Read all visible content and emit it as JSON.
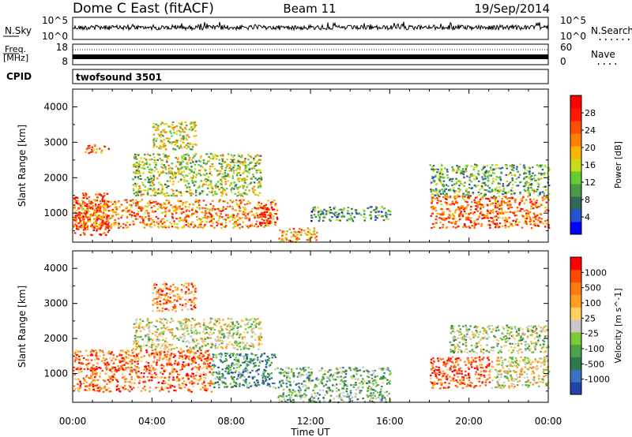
{
  "header": {
    "station": "Dome C East (fitACF)",
    "beam": "Beam 11",
    "date": "19/Sep/2014"
  },
  "param_strips": {
    "sky": {
      "label": "N.Sky",
      "left_ticks": [
        "10^5",
        "10^0"
      ],
      "right_ticks": [
        "10^5",
        "10^0"
      ],
      "right_label": "N.Search"
    },
    "freq": {
      "label_line1": "Freq.",
      "label_line2": "[MHz]",
      "left_ticks": [
        "18",
        "8"
      ],
      "right_ticks": [
        "60",
        "0"
      ],
      "right_label": "Nave"
    },
    "cpid": {
      "label": "CPID",
      "program": "twofsound 3501"
    }
  },
  "chart_data": [
    {
      "type": "heatmap",
      "title": "Power",
      "xlabel": "Time UT",
      "ylabel": "Slant Range [km]",
      "x_ticks": [
        "00:00",
        "04:00",
        "08:00",
        "12:00",
        "16:00",
        "20:00",
        "00:00"
      ],
      "y_ticks": [
        1000,
        2000,
        3000,
        4000
      ],
      "xlim_hours": [
        0,
        24
      ],
      "ylim_km": [
        180,
        4500
      ],
      "colorbar": {
        "label": "Power [dB]",
        "ticks": [
          "4",
          "8",
          "12",
          "16",
          "20",
          "24",
          "28"
        ],
        "colors": [
          "#0000ff",
          "#2255cc",
          "#2f6a57",
          "#4a9a4a",
          "#66cc33",
          "#c8dc1e",
          "#ffb400",
          "#ff8000",
          "#ff5000",
          "#ff1a00",
          "#ff0000"
        ]
      },
      "regions": [
        {
          "t": [
            0.0,
            1.8
          ],
          "r": [
            400,
            1600
          ],
          "v": 0.85
        },
        {
          "t": [
            0.0,
            10.2
          ],
          "r": [
            600,
            1400
          ],
          "v": 0.7
        },
        {
          "t": [
            0.6,
            1.8
          ],
          "r": [
            2700,
            2950
          ],
          "v": 0.7
        },
        {
          "t": [
            3.0,
            9.5
          ],
          "r": [
            1500,
            2700
          ],
          "v": 0.45
        },
        {
          "t": [
            4.0,
            6.2
          ],
          "r": [
            2800,
            3600
          ],
          "v": 0.5
        },
        {
          "t": [
            9.4,
            10.3
          ],
          "r": [
            700,
            1200
          ],
          "v": 0.9
        },
        {
          "t": [
            10.3,
            12.3
          ],
          "r": [
            200,
            600
          ],
          "v": 0.65
        },
        {
          "t": [
            12.0,
            16.0
          ],
          "r": [
            800,
            1200
          ],
          "v": 0.3
        },
        {
          "t": [
            18.0,
            24.0
          ],
          "r": [
            600,
            1500
          ],
          "v": 0.75
        },
        {
          "t": [
            18.0,
            24.0
          ],
          "r": [
            1500,
            2400
          ],
          "v": 0.35
        }
      ]
    },
    {
      "type": "heatmap",
      "title": "Velocity",
      "xlabel": "Time UT",
      "ylabel": "Slant Range [km]",
      "x_ticks": [
        "00:00",
        "04:00",
        "08:00",
        "12:00",
        "16:00",
        "20:00",
        "00:00"
      ],
      "y_ticks": [
        1000,
        2000,
        3000,
        4000
      ],
      "xlim_hours": [
        0,
        24
      ],
      "ylim_km": [
        180,
        4500
      ],
      "colorbar": {
        "label": "Velocity [m s^-1]",
        "ticks": [
          "1000",
          "500",
          "100",
          "25",
          "-25",
          "-100",
          "-500",
          "-1000"
        ],
        "colors": [
          "#2244aa",
          "#3d6fc2",
          "#2f7a4a",
          "#4aa24a",
          "#77cc33",
          "#c8c8c8",
          "#ffd060",
          "#ffa020",
          "#ff7a10",
          "#ff4a00",
          "#ff0000"
        ]
      },
      "regions": [
        {
          "t": [
            0.0,
            7.0
          ],
          "r": [
            500,
            1700
          ],
          "v": 0.8
        },
        {
          "t": [
            3.0,
            9.5
          ],
          "r": [
            1700,
            2600
          ],
          "v": 0.5
        },
        {
          "t": [
            4.0,
            6.2
          ],
          "r": [
            2800,
            3600
          ],
          "v": 0.75
        },
        {
          "t": [
            7.0,
            10.2
          ],
          "r": [
            600,
            1600
          ],
          "v": 0.25
        },
        {
          "t": [
            10.3,
            16.0
          ],
          "r": [
            200,
            1200
          ],
          "v": 0.35
        },
        {
          "t": [
            18.0,
            21.0
          ],
          "r": [
            600,
            1500
          ],
          "v": 0.85
        },
        {
          "t": [
            21.0,
            24.0
          ],
          "r": [
            600,
            1500
          ],
          "v": 0.55
        },
        {
          "t": [
            19.0,
            24.0
          ],
          "r": [
            1600,
            2400
          ],
          "v": 0.45
        }
      ]
    }
  ]
}
